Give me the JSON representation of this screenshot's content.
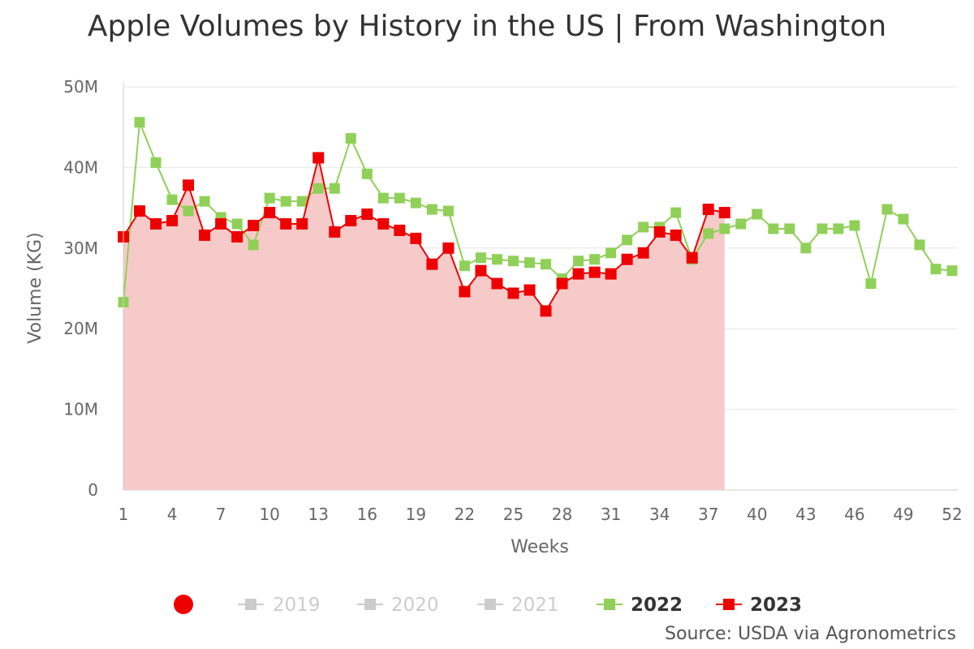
{
  "chart_data": {
    "type": "line",
    "title": "Apple Volumes by History in the US | From Washington",
    "xlabel": "Weeks",
    "ylabel": "Volume (KG)",
    "source": "Source: USDA via Agronometrics",
    "xlim": [
      1,
      52
    ],
    "ylim": [
      0,
      50000000
    ],
    "x_tick_labels": [
      "1",
      "4",
      "7",
      "10",
      "13",
      "16",
      "19",
      "22",
      "25",
      "28",
      "31",
      "34",
      "37",
      "40",
      "43",
      "46",
      "49",
      "52"
    ],
    "x_ticks": [
      1,
      4,
      7,
      10,
      13,
      16,
      19,
      22,
      25,
      28,
      31,
      34,
      37,
      40,
      43,
      46,
      49,
      52
    ],
    "y_tick_labels": [
      "0",
      "10M",
      "20M",
      "30M",
      "40M",
      "50M"
    ],
    "y_ticks": [
      0,
      10000000,
      20000000,
      30000000,
      40000000,
      50000000
    ],
    "grid": true,
    "legend_position": "bottom",
    "series": [
      {
        "name": "2019",
        "visible": false,
        "color": "#cccccc",
        "values": []
      },
      {
        "name": "2020",
        "visible": false,
        "color": "#cccccc",
        "values": []
      },
      {
        "name": "2021",
        "visible": false,
        "color": "#cccccc",
        "values": []
      },
      {
        "name": "2022",
        "visible": true,
        "color": "#90d058",
        "values": [
          23300000,
          45600000,
          40600000,
          36000000,
          34600000,
          35800000,
          33800000,
          33000000,
          30400000,
          36200000,
          35800000,
          35800000,
          37400000,
          37400000,
          43600000,
          39200000,
          36200000,
          36200000,
          35600000,
          34800000,
          34600000,
          27800000,
          28800000,
          28600000,
          28400000,
          28200000,
          28000000,
          26200000,
          28400000,
          28600000,
          29400000,
          31000000,
          32600000,
          32600000,
          34400000,
          28600000,
          31800000,
          32400000,
          33000000,
          34200000,
          32400000,
          32400000,
          30000000,
          32400000,
          32400000,
          32800000,
          25600000,
          34800000,
          33600000,
          30400000,
          27400000,
          27200000
        ]
      },
      {
        "name": "2023",
        "visible": true,
        "color": "#ee0000",
        "area": true,
        "area_color": "#f7caca",
        "values": [
          31400000,
          34600000,
          33000000,
          33400000,
          37800000,
          31600000,
          33000000,
          31400000,
          32800000,
          34400000,
          33000000,
          33000000,
          41200000,
          32000000,
          33400000,
          34200000,
          33000000,
          32200000,
          31200000,
          28000000,
          30000000,
          24600000,
          27200000,
          25600000,
          24400000,
          24800000,
          22200000,
          25600000,
          26800000,
          27000000,
          26800000,
          28600000,
          29400000,
          32000000,
          31600000,
          28800000,
          34800000,
          34400000
        ]
      }
    ]
  }
}
